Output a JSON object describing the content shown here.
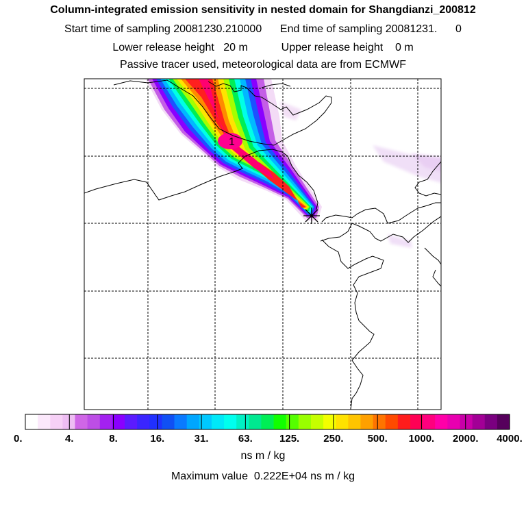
{
  "header": {
    "title": "Column-integrated emission sensitivity in nested domain for Shangdianzi_200812",
    "sampling": "Start time of sampling 20081230.210000      End time of sampling 20081231.      0",
    "release": "Lower release height   20 m           Upper release height    0 m",
    "tracer": "Passive tracer used, meteorological data are from ECMWF"
  },
  "map": {
    "plume_label": "1",
    "receptor_marker": "asterisk-icon"
  },
  "colorbar": {
    "labels": [
      "0.",
      "4.",
      "8.",
      "16.",
      "31.",
      "63.",
      "125.",
      "250.",
      "500.",
      "1000.",
      "2000.",
      "4000."
    ],
    "colors": [
      "#ffffff",
      "#fbe8fb",
      "#f6d0f6",
      "#eebdf3",
      "#cf66e6",
      "#bd4ee6",
      "#a321f0",
      "#8a00ff",
      "#5b1bff",
      "#3a25ff",
      "#2030ff",
      "#1050f4",
      "#0a7aff",
      "#00a6ff",
      "#00c8ff",
      "#00e8f8",
      "#00ffee",
      "#00f0c4",
      "#00e890",
      "#00ee55",
      "#11ff00",
      "#55ff00",
      "#99ff00",
      "#c6ff00",
      "#f2ff00",
      "#ffe200",
      "#ffc400",
      "#ffa000",
      "#ff7400",
      "#ff4a00",
      "#ff1c1c",
      "#ff0055",
      "#ff007e",
      "#ff00a8",
      "#e800b0",
      "#c800a8",
      "#a20096",
      "#7a0080",
      "#56005c"
    ],
    "units": "ns m / kg"
  },
  "summary": {
    "max_value": "Maximum value  0.222E+04 ns m / kg"
  }
}
